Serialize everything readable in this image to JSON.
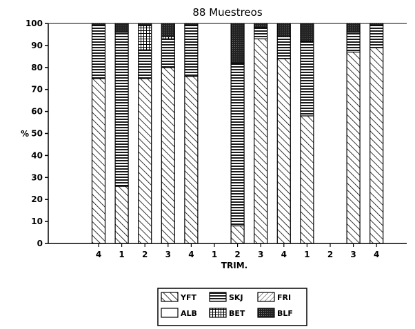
{
  "chart_data": {
    "type": "bar",
    "stacked": true,
    "title": "88 Muestreos",
    "xlabel": "TRIM.",
    "ylabel": "%",
    "ylim": [
      0,
      100
    ],
    "yticks": [
      0,
      10,
      20,
      30,
      40,
      50,
      60,
      70,
      80,
      90,
      100
    ],
    "categories": [
      "4",
      "1",
      "2",
      "3",
      "4",
      "1",
      "2",
      "3",
      "4",
      "1",
      "2",
      "3",
      "4"
    ],
    "series": [
      {
        "name": "YFT",
        "pattern": "diag",
        "values": [
          75,
          26,
          75,
          80,
          76,
          0,
          8,
          93,
          84,
          58,
          0,
          87,
          89
        ]
      },
      {
        "name": "SKJ",
        "pattern": "hlines",
        "values": [
          24,
          70,
          13,
          13,
          23,
          0,
          74,
          5,
          10,
          34,
          0,
          9,
          10
        ]
      },
      {
        "name": "FRI",
        "pattern": "light-diag",
        "values": [
          0,
          0,
          0,
          0,
          0,
          0,
          0,
          0,
          0,
          0,
          0,
          0,
          0
        ]
      },
      {
        "name": "ALB",
        "pattern": "blank",
        "values": [
          0,
          0,
          0,
          0,
          0,
          0,
          0,
          0,
          0,
          0,
          0,
          0,
          0
        ]
      },
      {
        "name": "BET",
        "pattern": "grid",
        "values": [
          0,
          0,
          11,
          1,
          0,
          0,
          0,
          0,
          0,
          0,
          0,
          0,
          0
        ]
      },
      {
        "name": "BLF",
        "pattern": "dark",
        "values": [
          1,
          4,
          1,
          6,
          1,
          0,
          18,
          2,
          6,
          8,
          0,
          4,
          1
        ]
      }
    ],
    "legend_position": "bottom-center",
    "grid": false
  }
}
